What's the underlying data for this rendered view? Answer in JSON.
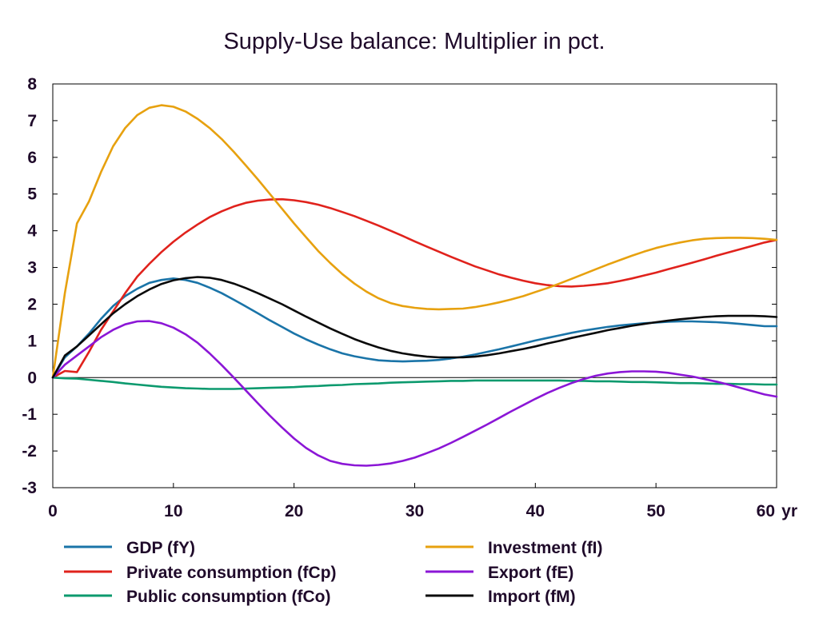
{
  "chart_data": {
    "type": "line",
    "title": "Supply-Use balance: Multiplier in pct.",
    "x_unit_label": "yr",
    "xlim": [
      0,
      60
    ],
    "ylim": [
      -3,
      8
    ],
    "x_ticks": [
      0,
      10,
      20,
      30,
      40,
      50,
      60
    ],
    "y_ticks": [
      8,
      7,
      6,
      5,
      4,
      3,
      2,
      1,
      0,
      -1,
      -2,
      -3
    ],
    "zero_line": true,
    "grid": false,
    "legend_position": "bottom",
    "x": [
      0,
      1,
      2,
      3,
      4,
      5,
      6,
      7,
      8,
      9,
      10,
      11,
      12,
      13,
      14,
      15,
      16,
      17,
      18,
      19,
      20,
      21,
      22,
      23,
      24,
      25,
      26,
      27,
      28,
      29,
      30,
      31,
      32,
      33,
      34,
      35,
      36,
      37,
      38,
      39,
      40,
      41,
      42,
      43,
      44,
      45,
      46,
      47,
      48,
      49,
      50,
      51,
      52,
      53,
      54,
      55,
      56,
      57,
      58,
      59,
      60
    ],
    "series": [
      {
        "name": "GDP (fY)",
        "color": "#1a74a8",
        "values": [
          0,
          0.55,
          0.85,
          1.2,
          1.6,
          1.95,
          2.22,
          2.42,
          2.58,
          2.66,
          2.7,
          2.66,
          2.58,
          2.45,
          2.3,
          2.12,
          1.94,
          1.75,
          1.56,
          1.38,
          1.2,
          1.04,
          0.9,
          0.77,
          0.66,
          0.58,
          0.52,
          0.47,
          0.45,
          0.44,
          0.45,
          0.46,
          0.48,
          0.52,
          0.57,
          0.63,
          0.7,
          0.77,
          0.85,
          0.93,
          1.01,
          1.08,
          1.15,
          1.22,
          1.28,
          1.33,
          1.38,
          1.42,
          1.45,
          1.48,
          1.5,
          1.52,
          1.53,
          1.53,
          1.52,
          1.51,
          1.49,
          1.46,
          1.43,
          1.4,
          1.4
        ]
      },
      {
        "name": "Private consumption (fCp)",
        "color": "#e0221c",
        "values": [
          0,
          0.18,
          0.15,
          0.7,
          1.3,
          1.8,
          2.3,
          2.75,
          3.1,
          3.42,
          3.7,
          3.95,
          4.17,
          4.37,
          4.53,
          4.66,
          4.76,
          4.82,
          4.85,
          4.86,
          4.83,
          4.78,
          4.71,
          4.62,
          4.51,
          4.4,
          4.27,
          4.14,
          4.0,
          3.86,
          3.71,
          3.57,
          3.43,
          3.29,
          3.16,
          3.03,
          2.92,
          2.81,
          2.72,
          2.64,
          2.57,
          2.52,
          2.49,
          2.48,
          2.5,
          2.53,
          2.57,
          2.63,
          2.7,
          2.78,
          2.86,
          2.95,
          3.04,
          3.13,
          3.22,
          3.32,
          3.41,
          3.5,
          3.59,
          3.68,
          3.75
        ]
      },
      {
        "name": "Public consumption (fCo)",
        "color": "#0c9a6e",
        "values": [
          0,
          -0.02,
          -0.03,
          -0.06,
          -0.09,
          -0.12,
          -0.16,
          -0.19,
          -0.22,
          -0.25,
          -0.27,
          -0.29,
          -0.3,
          -0.31,
          -0.31,
          -0.31,
          -0.3,
          -0.29,
          -0.28,
          -0.27,
          -0.26,
          -0.24,
          -0.23,
          -0.21,
          -0.2,
          -0.18,
          -0.17,
          -0.16,
          -0.14,
          -0.13,
          -0.12,
          -0.11,
          -0.1,
          -0.09,
          -0.09,
          -0.08,
          -0.08,
          -0.08,
          -0.08,
          -0.08,
          -0.08,
          -0.08,
          -0.08,
          -0.09,
          -0.09,
          -0.1,
          -0.1,
          -0.11,
          -0.12,
          -0.12,
          -0.13,
          -0.14,
          -0.15,
          -0.15,
          -0.16,
          -0.17,
          -0.17,
          -0.18,
          -0.18,
          -0.19,
          -0.19
        ]
      },
      {
        "name": "Investment (fI)",
        "color": "#e7a10f",
        "values": [
          0,
          2.3,
          4.2,
          4.8,
          5.6,
          6.3,
          6.8,
          7.15,
          7.35,
          7.42,
          7.38,
          7.25,
          7.05,
          6.8,
          6.5,
          6.15,
          5.78,
          5.4,
          5.0,
          4.6,
          4.2,
          3.82,
          3.45,
          3.12,
          2.82,
          2.56,
          2.34,
          2.16,
          2.03,
          1.95,
          1.9,
          1.87,
          1.86,
          1.87,
          1.88,
          1.92,
          1.98,
          2.05,
          2.13,
          2.22,
          2.33,
          2.44,
          2.56,
          2.69,
          2.82,
          2.95,
          3.08,
          3.2,
          3.32,
          3.43,
          3.53,
          3.61,
          3.68,
          3.74,
          3.78,
          3.8,
          3.81,
          3.81,
          3.8,
          3.78,
          3.75
        ]
      },
      {
        "name": "Export (fE)",
        "color": "#8b16d6",
        "values": [
          0,
          0.35,
          0.6,
          0.85,
          1.1,
          1.3,
          1.45,
          1.53,
          1.54,
          1.48,
          1.36,
          1.18,
          0.95,
          0.66,
          0.34,
          0.0,
          -0.35,
          -0.7,
          -1.04,
          -1.36,
          -1.66,
          -1.92,
          -2.12,
          -2.27,
          -2.35,
          -2.39,
          -2.4,
          -2.38,
          -2.34,
          -2.27,
          -2.18,
          -2.06,
          -1.93,
          -1.78,
          -1.62,
          -1.45,
          -1.28,
          -1.1,
          -0.92,
          -0.75,
          -0.58,
          -0.42,
          -0.28,
          -0.15,
          -0.04,
          0.05,
          0.11,
          0.15,
          0.17,
          0.17,
          0.16,
          0.13,
          0.08,
          0.03,
          -0.04,
          -0.11,
          -0.19,
          -0.28,
          -0.37,
          -0.46,
          -0.52
        ]
      },
      {
        "name": "Import (fM)",
        "color": "#0a0a0a",
        "values": [
          0,
          0.6,
          0.85,
          1.15,
          1.45,
          1.75,
          2.0,
          2.22,
          2.4,
          2.55,
          2.65,
          2.71,
          2.74,
          2.72,
          2.66,
          2.56,
          2.44,
          2.3,
          2.15,
          2.0,
          1.83,
          1.66,
          1.5,
          1.34,
          1.19,
          1.05,
          0.93,
          0.82,
          0.73,
          0.66,
          0.61,
          0.57,
          0.55,
          0.55,
          0.55,
          0.57,
          0.61,
          0.66,
          0.72,
          0.78,
          0.85,
          0.93,
          1.0,
          1.08,
          1.15,
          1.22,
          1.29,
          1.35,
          1.41,
          1.46,
          1.51,
          1.55,
          1.59,
          1.62,
          1.65,
          1.67,
          1.68,
          1.68,
          1.68,
          1.67,
          1.65
        ]
      }
    ]
  }
}
